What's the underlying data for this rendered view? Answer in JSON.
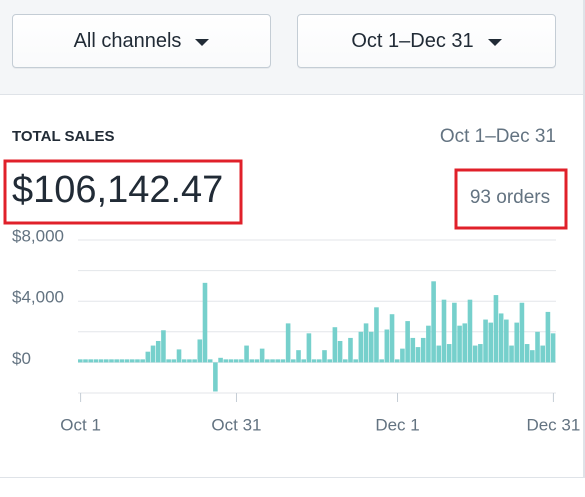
{
  "filters": [
    {
      "label": "All channels"
    },
    {
      "label": "Oct 1–Dec 31"
    }
  ],
  "card": {
    "title": "TOTAL SALES",
    "period": "Oct 1–Dec 31",
    "total": "$106,142.47",
    "orders": "93 orders"
  },
  "chart_data": {
    "type": "bar",
    "color": "#76d0cc",
    "categories": [
      "Oct 1",
      null,
      null,
      null,
      null,
      null,
      null,
      null,
      null,
      null,
      null,
      null,
      null,
      null,
      null,
      null,
      null,
      null,
      null,
      null,
      null,
      null,
      null,
      null,
      null,
      null,
      null,
      null,
      null,
      null,
      "Oct 31",
      null,
      null,
      null,
      null,
      null,
      null,
      null,
      null,
      null,
      null,
      null,
      null,
      null,
      null,
      null,
      null,
      null,
      null,
      null,
      null,
      null,
      null,
      null,
      null,
      null,
      null,
      null,
      null,
      null,
      null,
      "Dec 1",
      null,
      null,
      null,
      null,
      null,
      null,
      null,
      null,
      null,
      null,
      null,
      null,
      null,
      null,
      null,
      null,
      null,
      null,
      null,
      null,
      null,
      null,
      null,
      null,
      null,
      null,
      null,
      null,
      null,
      "Dec 31"
    ],
    "values": [
      200,
      200,
      200,
      200,
      200,
      200,
      200,
      200,
      200,
      200,
      200,
      200,
      200,
      700,
      1100,
      1400,
      2100,
      200,
      200,
      850,
      200,
      200,
      200,
      1500,
      5200,
      200,
      -1900,
      300,
      200,
      200,
      200,
      200,
      1100,
      200,
      200,
      900,
      200,
      200,
      200,
      200,
      2550,
      200,
      800,
      200,
      1900,
      200,
      200,
      800,
      200,
      2300,
      1400,
      200,
      1600,
      200,
      2000,
      2550,
      2000,
      3600,
      200,
      2150,
      3150,
      200,
      900,
      2700,
      1600,
      1000,
      1600,
      2400,
      5300,
      1100,
      4100,
      1200,
      3900,
      2400,
      2550,
      4100,
      1100,
      1200,
      2800,
      2600,
      4400,
      3200,
      2800,
      1100,
      2600,
      3900,
      1200,
      800,
      2000,
      1100,
      3300,
      1900
    ],
    "ylim": [
      -2000,
      8000
    ],
    "yticks": [
      {
        "value": 0,
        "label": "$0"
      },
      {
        "value": 4000,
        "label": "$4,000"
      },
      {
        "value": 8000,
        "label": "$8,000"
      }
    ],
    "minor_yticks": [
      -2000,
      2000,
      6000
    ],
    "grid": true
  }
}
